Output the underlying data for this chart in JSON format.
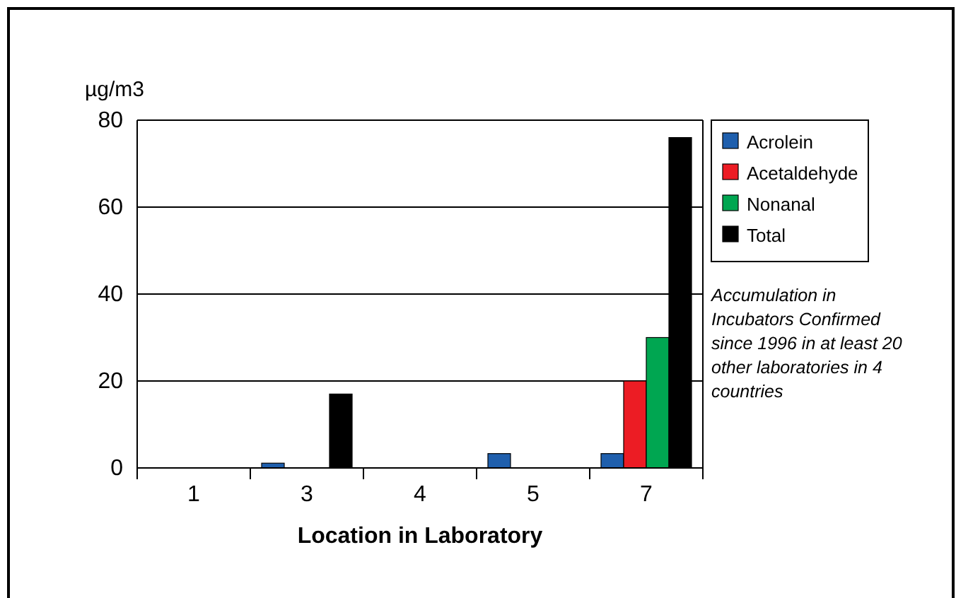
{
  "chart_data": {
    "type": "bar",
    "ylabel": "µg/m3",
    "xlabel": "Location in Laboratory",
    "categories": [
      "1",
      "3",
      "4",
      "5",
      "7"
    ],
    "series": [
      {
        "name": "Acrolein",
        "color": "#1f5fad",
        "values": [
          null,
          1.1,
          null,
          3.3,
          3.3
        ]
      },
      {
        "name": "Acetaldehyde",
        "color": "#ec1c24",
        "values": [
          null,
          null,
          null,
          null,
          20
        ]
      },
      {
        "name": "Nonanal",
        "color": "#00a651",
        "values": [
          null,
          null,
          null,
          null,
          30
        ]
      },
      {
        "name": "Total",
        "color": "#000000",
        "values": [
          null,
          17,
          null,
          null,
          76
        ]
      }
    ],
    "ylim": [
      0,
      80
    ],
    "yticks": [
      0,
      20,
      40,
      60,
      80
    ],
    "grid": "y",
    "legend": "right",
    "annotations": [
      "Accumulation in Incubators Confirmed since 1996 in at least 20 other laboratories in 4 countries"
    ]
  }
}
